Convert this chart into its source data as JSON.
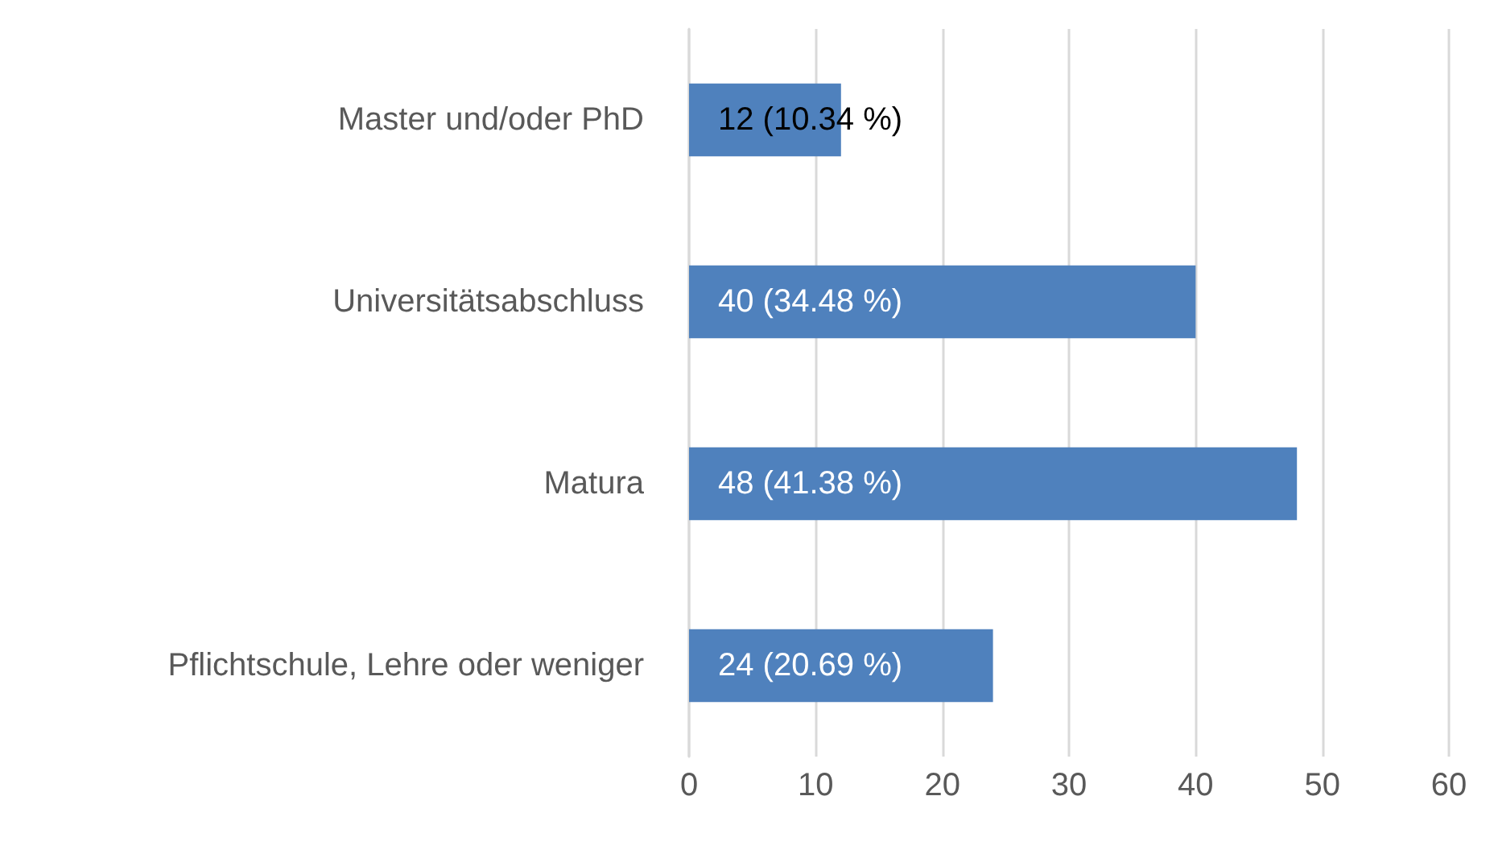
{
  "chart_data": {
    "type": "bar",
    "orientation": "horizontal",
    "categories": [
      "Master und/oder PhD",
      "Universitätsabschluss",
      "Matura",
      "Pflichtschule, Lehre oder weniger"
    ],
    "values": [
      12,
      40,
      48,
      24
    ],
    "value_labels": [
      "12 (10.34 %)",
      "40 (34.48 %)",
      "48 (41.38 %)",
      "24 (20.69 %)"
    ],
    "color": "#4f81bd",
    "xlim": [
      0,
      60
    ],
    "xticks": [
      0,
      10,
      20,
      30,
      40,
      50,
      60
    ],
    "grid": "x"
  }
}
